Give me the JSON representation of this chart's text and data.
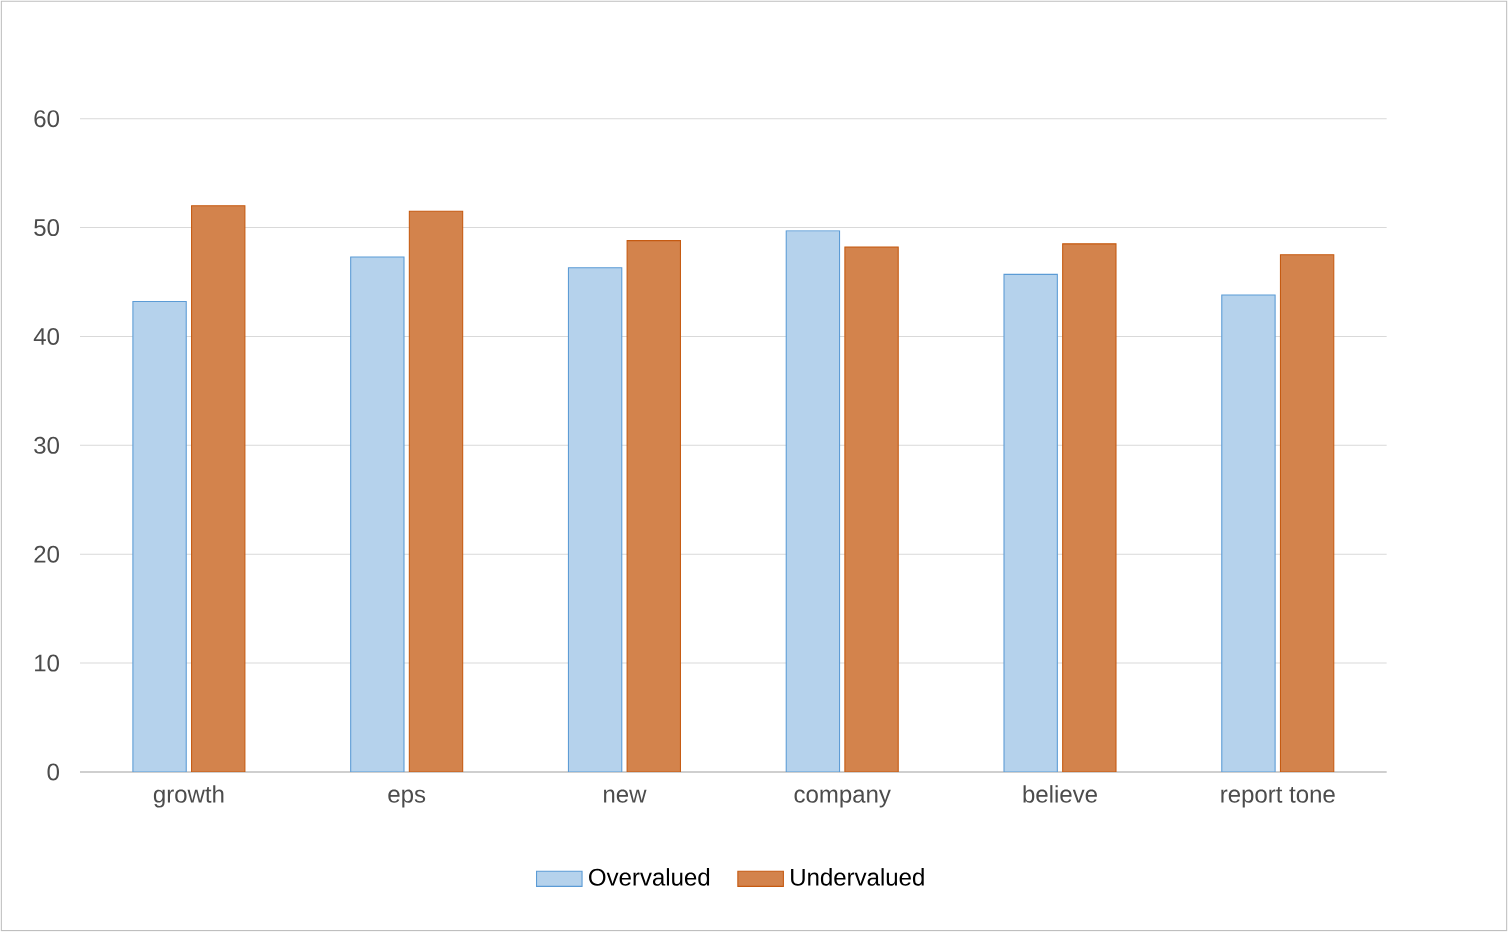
{
  "chart_data": {
    "type": "bar",
    "categories": [
      "growth",
      "eps",
      "new",
      "company",
      "believe",
      "report tone"
    ],
    "series": [
      {
        "name": "Overvalued",
        "color": "#5b9bd5",
        "values": [
          43.2,
          47.3,
          46.3,
          49.7,
          45.7,
          43.8
        ]
      },
      {
        "name": "Undervalued",
        "color": "#c55a11",
        "values": [
          52.0,
          51.5,
          48.8,
          48.2,
          48.5,
          47.5
        ]
      }
    ],
    "ylim": [
      0,
      60
    ],
    "yticks": [
      0,
      10,
      20,
      30,
      40,
      50,
      60
    ],
    "grid": "y",
    "legend": "bottom"
  }
}
